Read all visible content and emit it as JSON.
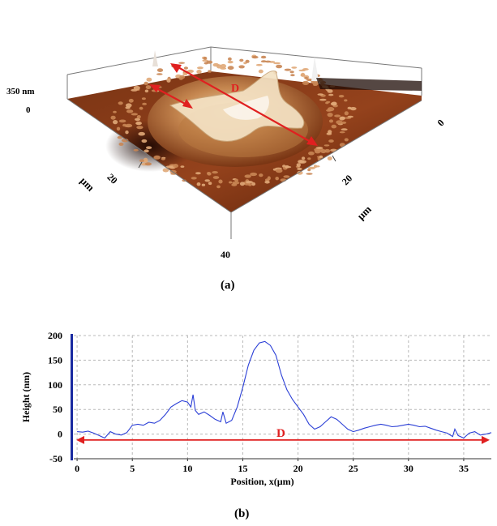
{
  "afm_panel": {
    "z_scale_label": "350 nm",
    "z_zero_label": "0",
    "left_axis": {
      "tick": "20",
      "end": "40",
      "unit": "µm"
    },
    "right_axis": {
      "start": "0",
      "tick": "20",
      "unit": "µm"
    },
    "diameter_marker": "D",
    "caption": "(a)",
    "colors": {
      "surface_dark": "#4a1a08",
      "surface_mid": "#8a3a16",
      "surface_light": "#d9a066",
      "arrow": "#e02020"
    }
  },
  "profile_panel": {
    "caption": "(b)",
    "diameter_marker": "D"
  },
  "chart_data": {
    "type": "line",
    "title": "",
    "xlabel": "Position, x(µm)",
    "ylabel": "Height (nm)",
    "xlim": [
      -0.3,
      37.5
    ],
    "ylim": [
      -50,
      200
    ],
    "xticks": [
      "0",
      "5",
      "10",
      "15",
      "20",
      "25",
      "30",
      "35"
    ],
    "yticks": [
      "-50",
      "0",
      "50",
      "100",
      "150",
      "200"
    ],
    "grid": true,
    "line_color": "#2b3fd6",
    "arrow_color": "#e02020",
    "series": [
      {
        "x": [
          0,
          0.5,
          1,
          1.5,
          2,
          2.5,
          3,
          3.5,
          4,
          4.5,
          5,
          5.5,
          6,
          6.5,
          7,
          7.5,
          8,
          8.5,
          9,
          9.5,
          10,
          10.3,
          10.5,
          10.7,
          11,
          11.5,
          12,
          12.5,
          13,
          13.2,
          13.5,
          14,
          14.5,
          15,
          15.5,
          16,
          16.5,
          17,
          17.5,
          18,
          18.5,
          19,
          19.5,
          20,
          20.5,
          21,
          21.5,
          22,
          22.5,
          23,
          23.5,
          24,
          24.5,
          25,
          25.5,
          26,
          26.5,
          27,
          27.5,
          28,
          28.5,
          29,
          29.5,
          30,
          30.5,
          31,
          31.5,
          32,
          32.5,
          33,
          33.5,
          34,
          34.2,
          34.5,
          35,
          35.5,
          36,
          36.5,
          37,
          37.5
        ],
        "y": [
          5,
          4,
          6,
          2,
          -3,
          -8,
          5,
          0,
          -2,
          3,
          18,
          20,
          18,
          24,
          22,
          28,
          40,
          55,
          62,
          68,
          65,
          55,
          80,
          48,
          40,
          45,
          38,
          30,
          25,
          45,
          22,
          28,
          55,
          95,
          140,
          170,
          185,
          188,
          180,
          160,
          120,
          90,
          70,
          55,
          40,
          20,
          10,
          15,
          25,
          35,
          30,
          20,
          10,
          5,
          8,
          12,
          15,
          18,
          20,
          18,
          15,
          16,
          18,
          20,
          18,
          15,
          16,
          12,
          8,
          5,
          2,
          -5,
          10,
          -3,
          -8,
          2,
          5,
          -2,
          0,
          3
        ]
      }
    ]
  }
}
